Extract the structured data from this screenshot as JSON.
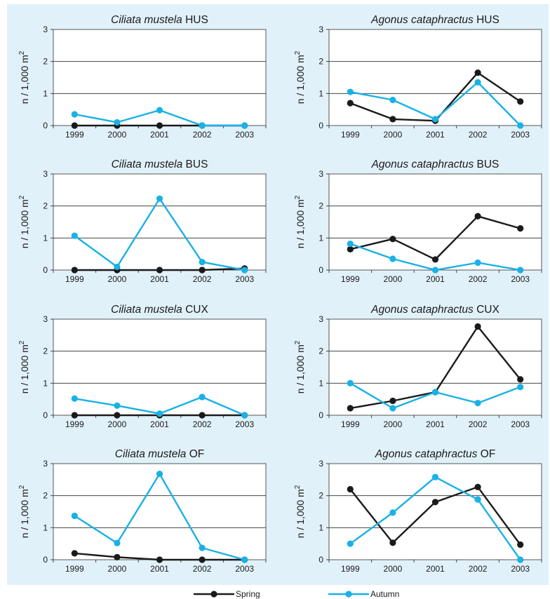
{
  "figure": {
    "background_color": "#e1f1fa",
    "y_label": "n / 1,000 m",
    "y_label_superscript": "2",
    "legend": [
      {
        "label": "Spring",
        "color": "#1a1a1a"
      },
      {
        "label": "Autumn",
        "color": "#19b1e6"
      }
    ]
  },
  "chart_data": [
    {
      "type": "line",
      "title_species": "Ciliata mustela",
      "title_site": "HUS",
      "x": [
        "1999",
        "2000",
        "2001",
        "2002",
        "2003"
      ],
      "ylim": [
        0,
        3
      ],
      "yticks": [
        0,
        1,
        2,
        3
      ],
      "grid": true,
      "series": [
        {
          "name": "Spring",
          "color": "#1a1a1a",
          "values": [
            0,
            0,
            0,
            0,
            0
          ]
        },
        {
          "name": "Autumn",
          "color": "#19b1e6",
          "values": [
            0.35,
            0.1,
            0.48,
            0,
            0
          ]
        }
      ]
    },
    {
      "type": "line",
      "title_species": "Agonus cataphractus",
      "title_site": "HUS",
      "x": [
        "1999",
        "2000",
        "2001",
        "2002",
        "2003"
      ],
      "ylim": [
        0,
        3
      ],
      "yticks": [
        0,
        1,
        2,
        3
      ],
      "grid": true,
      "series": [
        {
          "name": "Spring",
          "color": "#1a1a1a",
          "values": [
            0.7,
            0.2,
            0.15,
            1.65,
            0.75
          ]
        },
        {
          "name": "Autumn",
          "color": "#19b1e6",
          "values": [
            1.05,
            0.8,
            0.2,
            1.35,
            0
          ]
        }
      ]
    },
    {
      "type": "line",
      "title_species": "Ciliata mustela",
      "title_site": "BUS",
      "x": [
        "1999",
        "2000",
        "2001",
        "2002",
        "2003"
      ],
      "ylim": [
        0,
        3
      ],
      "yticks": [
        0,
        1,
        2,
        3
      ],
      "grid": true,
      "series": [
        {
          "name": "Spring",
          "color": "#1a1a1a",
          "values": [
            0,
            0,
            0,
            0,
            0.05
          ]
        },
        {
          "name": "Autumn",
          "color": "#19b1e6",
          "values": [
            1.07,
            0.1,
            2.23,
            0.25,
            0
          ]
        }
      ]
    },
    {
      "type": "line",
      "title_species": "Agonus cataphractus",
      "title_site": "BUS",
      "x": [
        "1999",
        "2000",
        "2001",
        "2002",
        "2003"
      ],
      "ylim": [
        0,
        3
      ],
      "yticks": [
        0,
        1,
        2,
        3
      ],
      "grid": true,
      "series": [
        {
          "name": "Spring",
          "color": "#1a1a1a",
          "values": [
            0.65,
            0.97,
            0.33,
            1.68,
            1.3
          ]
        },
        {
          "name": "Autumn",
          "color": "#19b1e6",
          "values": [
            0.82,
            0.35,
            0,
            0.23,
            0
          ]
        }
      ]
    },
    {
      "type": "line",
      "title_species": "Ciliata mustela",
      "title_site": "CUX",
      "x": [
        "1999",
        "2000",
        "2001",
        "2002",
        "2003"
      ],
      "ylim": [
        0,
        3
      ],
      "yticks": [
        0,
        1,
        2,
        3
      ],
      "grid": true,
      "series": [
        {
          "name": "Spring",
          "color": "#1a1a1a",
          "values": [
            0,
            0,
            0,
            0,
            0
          ]
        },
        {
          "name": "Autumn",
          "color": "#19b1e6",
          "values": [
            0.52,
            0.3,
            0.05,
            0.57,
            0
          ]
        }
      ]
    },
    {
      "type": "line",
      "title_species": "Agonus cataphractus",
      "title_site": "CUX",
      "x": [
        "1999",
        "2000",
        "2001",
        "2002",
        "2003"
      ],
      "ylim": [
        0,
        3
      ],
      "yticks": [
        0,
        1,
        2,
        3
      ],
      "grid": true,
      "series": [
        {
          "name": "Spring",
          "color": "#1a1a1a",
          "values": [
            0.22,
            0.45,
            0.72,
            2.77,
            1.12
          ]
        },
        {
          "name": "Autumn",
          "color": "#19b1e6",
          "values": [
            1.0,
            0.22,
            0.72,
            0.38,
            0.88
          ]
        }
      ]
    },
    {
      "type": "line",
      "title_species": "Ciliata mustela",
      "title_site": "OF",
      "x": [
        "1999",
        "2000",
        "2001",
        "2002",
        "2003"
      ],
      "ylim": [
        0,
        3
      ],
      "yticks": [
        0,
        1,
        2,
        3
      ],
      "grid": true,
      "series": [
        {
          "name": "Spring",
          "color": "#1a1a1a",
          "values": [
            0.2,
            0.08,
            0,
            0,
            0
          ]
        },
        {
          "name": "Autumn",
          "color": "#19b1e6",
          "values": [
            1.37,
            0.52,
            2.68,
            0.37,
            0
          ]
        }
      ]
    },
    {
      "type": "line",
      "title_species": "Agonus cataphractus",
      "title_site": "OF",
      "x": [
        "1999",
        "2000",
        "2001",
        "2002",
        "2003"
      ],
      "ylim": [
        0,
        3
      ],
      "yticks": [
        0,
        1,
        2,
        3
      ],
      "grid": true,
      "series": [
        {
          "name": "Spring",
          "color": "#1a1a1a",
          "values": [
            2.2,
            0.53,
            1.8,
            2.27,
            0.47
          ]
        },
        {
          "name": "Autumn",
          "color": "#19b1e6",
          "values": [
            0.5,
            1.47,
            2.58,
            1.88,
            0
          ]
        }
      ]
    }
  ]
}
